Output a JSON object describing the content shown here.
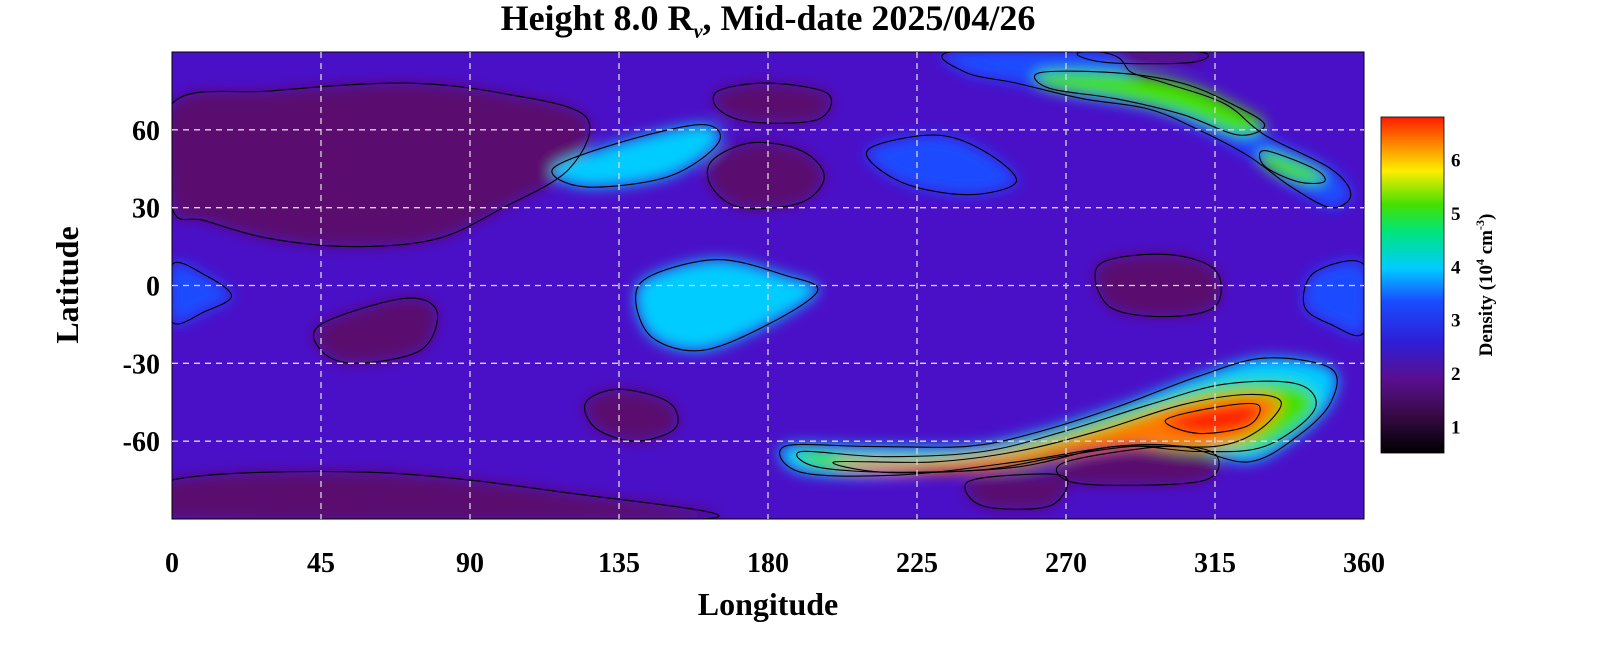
{
  "chart_data": {
    "type": "heatmap",
    "title_prefix": "Height 8.0 R",
    "title_sub": "v",
    "title_suffix": ", Mid-date 2025/04/26",
    "xlabel": "Longitude",
    "ylabel": "Latitude",
    "xlim": [
      0,
      360
    ],
    "ylim": [
      -90,
      90
    ],
    "x_ticks": [
      0,
      45,
      90,
      135,
      180,
      225,
      270,
      315,
      360
    ],
    "y_ticks": [
      60,
      30,
      0,
      -30,
      -60
    ],
    "grid": true,
    "colorbar": {
      "label_prefix": "Density (10",
      "label_exp1": "4",
      "label_mid": " cm",
      "label_exp2": "-3",
      "label_suffix": ")",
      "range": [
        0.5,
        6.8
      ],
      "ticks": [
        1,
        2,
        3,
        4,
        5,
        6
      ],
      "colors": [
        "#000000",
        "#5a0f6e",
        "#2d1fd6",
        "#1a4cff",
        "#00ccff",
        "#00e57a",
        "#45e000",
        "#ffee00",
        "#ff7800",
        "#ff1a00"
      ]
    },
    "regions": [
      {
        "name": "low-north-west",
        "level": 0.9,
        "points": [
          [
            0,
            70
          ],
          [
            30,
            75
          ],
          [
            70,
            78
          ],
          [
            100,
            74
          ],
          [
            125,
            65
          ],
          [
            120,
            45
          ],
          [
            100,
            30
          ],
          [
            80,
            18
          ],
          [
            55,
            15
          ],
          [
            30,
            18
          ],
          [
            10,
            25
          ],
          [
            0,
            30
          ]
        ]
      },
      {
        "name": "low-north-180",
        "level": 1.1,
        "points": [
          [
            165,
            75
          ],
          [
            180,
            78
          ],
          [
            198,
            74
          ],
          [
            195,
            64
          ],
          [
            175,
            63
          ],
          [
            165,
            68
          ]
        ]
      },
      {
        "name": "low-north-175",
        "level": 1.1,
        "points": [
          [
            163,
            48
          ],
          [
            175,
            55
          ],
          [
            190,
            52
          ],
          [
            197,
            42
          ],
          [
            190,
            32
          ],
          [
            172,
            30
          ],
          [
            163,
            38
          ]
        ]
      },
      {
        "name": "low-pole-north",
        "level": 1.0,
        "points": [
          [
            275,
            90
          ],
          [
            310,
            90
          ],
          [
            308,
            86
          ],
          [
            282,
            86
          ]
        ]
      },
      {
        "name": "low-equator-290",
        "level": 1.0,
        "points": [
          [
            280,
            8
          ],
          [
            300,
            12
          ],
          [
            315,
            6
          ],
          [
            315,
            -8
          ],
          [
            300,
            -12
          ],
          [
            283,
            -8
          ]
        ]
      },
      {
        "name": "low-south-west",
        "level": 1.2,
        "points": [
          [
            45,
            -15
          ],
          [
            70,
            -5
          ],
          [
            80,
            -10
          ],
          [
            75,
            -25
          ],
          [
            55,
            -30
          ],
          [
            45,
            -25
          ]
        ]
      },
      {
        "name": "low-south-155",
        "level": 1.2,
        "points": [
          [
            125,
            -45
          ],
          [
            135,
            -40
          ],
          [
            150,
            -45
          ],
          [
            152,
            -55
          ],
          [
            140,
            -60
          ],
          [
            128,
            -55
          ]
        ]
      },
      {
        "name": "low-south-far",
        "level": 0.9,
        "points": [
          [
            0,
            -75
          ],
          [
            60,
            -72
          ],
          [
            120,
            -80
          ],
          [
            160,
            -90
          ],
          [
            0,
            -90
          ]
        ]
      },
      {
        "name": "low-south-250",
        "level": 1.0,
        "points": [
          [
            240,
            -76
          ],
          [
            255,
            -73
          ],
          [
            270,
            -74
          ],
          [
            265,
            -85
          ],
          [
            245,
            -85
          ]
        ]
      },
      {
        "name": "low-south-290",
        "level": 1.0,
        "points": [
          [
            270,
            -68
          ],
          [
            300,
            -62
          ],
          [
            315,
            -65
          ],
          [
            312,
            -75
          ],
          [
            285,
            -77
          ],
          [
            270,
            -75
          ]
        ]
      },
      {
        "name": "high-north-145",
        "level": 3.0,
        "points": [
          [
            115,
            45
          ],
          [
            135,
            55
          ],
          [
            160,
            62
          ],
          [
            165,
            55
          ],
          [
            150,
            42
          ],
          [
            125,
            38
          ]
        ]
      },
      {
        "name": "high-north-235",
        "level": 2.9,
        "points": [
          [
            210,
            52
          ],
          [
            230,
            58
          ],
          [
            245,
            52
          ],
          [
            255,
            40
          ],
          [
            240,
            35
          ],
          [
            220,
            40
          ]
        ]
      },
      {
        "name": "high-ridge-north",
        "level": 2.8,
        "points": [
          [
            235,
            90
          ],
          [
            280,
            90
          ],
          [
            290,
            82
          ],
          [
            300,
            78
          ],
          [
            318,
            70
          ],
          [
            330,
            58
          ],
          [
            350,
            45
          ],
          [
            356,
            35
          ],
          [
            350,
            30
          ],
          [
            338,
            38
          ],
          [
            325,
            50
          ],
          [
            310,
            60
          ],
          [
            295,
            68
          ],
          [
            275,
            72
          ],
          [
            255,
            78
          ],
          [
            240,
            82
          ]
        ]
      },
      {
        "name": "core-ridge-north-1",
        "level": 4.6,
        "points": [
          [
            262,
            82
          ],
          [
            285,
            82
          ],
          [
            305,
            78
          ],
          [
            320,
            70
          ],
          [
            330,
            62
          ],
          [
            322,
            58
          ],
          [
            305,
            66
          ],
          [
            285,
            72
          ],
          [
            265,
            76
          ]
        ]
      },
      {
        "name": "core-ridge-north-2",
        "level": 4.8,
        "points": [
          [
            330,
            52
          ],
          [
            345,
            45
          ],
          [
            348,
            40
          ],
          [
            340,
            40
          ],
          [
            330,
            46
          ]
        ]
      },
      {
        "name": "high-equator-0",
        "level": 2.8,
        "points": [
          [
            0,
            8
          ],
          [
            10,
            4
          ],
          [
            18,
            -4
          ],
          [
            10,
            -10
          ],
          [
            0,
            -14
          ]
        ]
      },
      {
        "name": "high-equator-150",
        "level": 3.1,
        "points": [
          [
            145,
            4
          ],
          [
            165,
            10
          ],
          [
            185,
            4
          ],
          [
            195,
            -2
          ],
          [
            180,
            -15
          ],
          [
            160,
            -25
          ],
          [
            145,
            -20
          ],
          [
            140,
            -5
          ]
        ]
      },
      {
        "name": "high-equator-355",
        "level": 2.7,
        "points": [
          [
            345,
            5
          ],
          [
            360,
            8
          ],
          [
            360,
            -18
          ],
          [
            350,
            -15
          ],
          [
            342,
            -8
          ]
        ]
      },
      {
        "name": "high-band-south",
        "level": 3.2,
        "points": [
          [
            185,
            -62
          ],
          [
            210,
            -62
          ],
          [
            240,
            -62
          ],
          [
            260,
            -57
          ],
          [
            285,
            -47
          ],
          [
            310,
            -35
          ],
          [
            330,
            -28
          ],
          [
            350,
            -32
          ],
          [
            350,
            -45
          ],
          [
            340,
            -58
          ],
          [
            325,
            -68
          ],
          [
            305,
            -62
          ],
          [
            285,
            -62
          ],
          [
            255,
            -68
          ],
          [
            220,
            -73
          ],
          [
            190,
            -72
          ]
        ]
      },
      {
        "name": "green-band-south",
        "level": 4.4,
        "points": [
          [
            190,
            -64
          ],
          [
            215,
            -66
          ],
          [
            245,
            -64
          ],
          [
            270,
            -56
          ],
          [
            295,
            -46
          ],
          [
            318,
            -38
          ],
          [
            340,
            -38
          ],
          [
            345,
            -48
          ],
          [
            330,
            -62
          ],
          [
            310,
            -64
          ],
          [
            285,
            -62
          ],
          [
            255,
            -70
          ],
          [
            220,
            -72
          ],
          [
            195,
            -70
          ]
        ]
      },
      {
        "name": "yellow-band-south",
        "level": 6.0,
        "points": [
          [
            200,
            -68
          ],
          [
            230,
            -68
          ],
          [
            255,
            -64
          ],
          [
            280,
            -56
          ],
          [
            305,
            -46
          ],
          [
            325,
            -42
          ],
          [
            335,
            -45
          ],
          [
            328,
            -56
          ],
          [
            315,
            -62
          ],
          [
            290,
            -62
          ],
          [
            268,
            -66
          ],
          [
            245,
            -71
          ],
          [
            215,
            -72
          ]
        ]
      },
      {
        "name": "red-core-south",
        "level": 6.6,
        "points": [
          [
            300,
            -52
          ],
          [
            315,
            -47
          ],
          [
            328,
            -46
          ],
          [
            325,
            -54
          ],
          [
            310,
            -57
          ]
        ]
      }
    ]
  }
}
